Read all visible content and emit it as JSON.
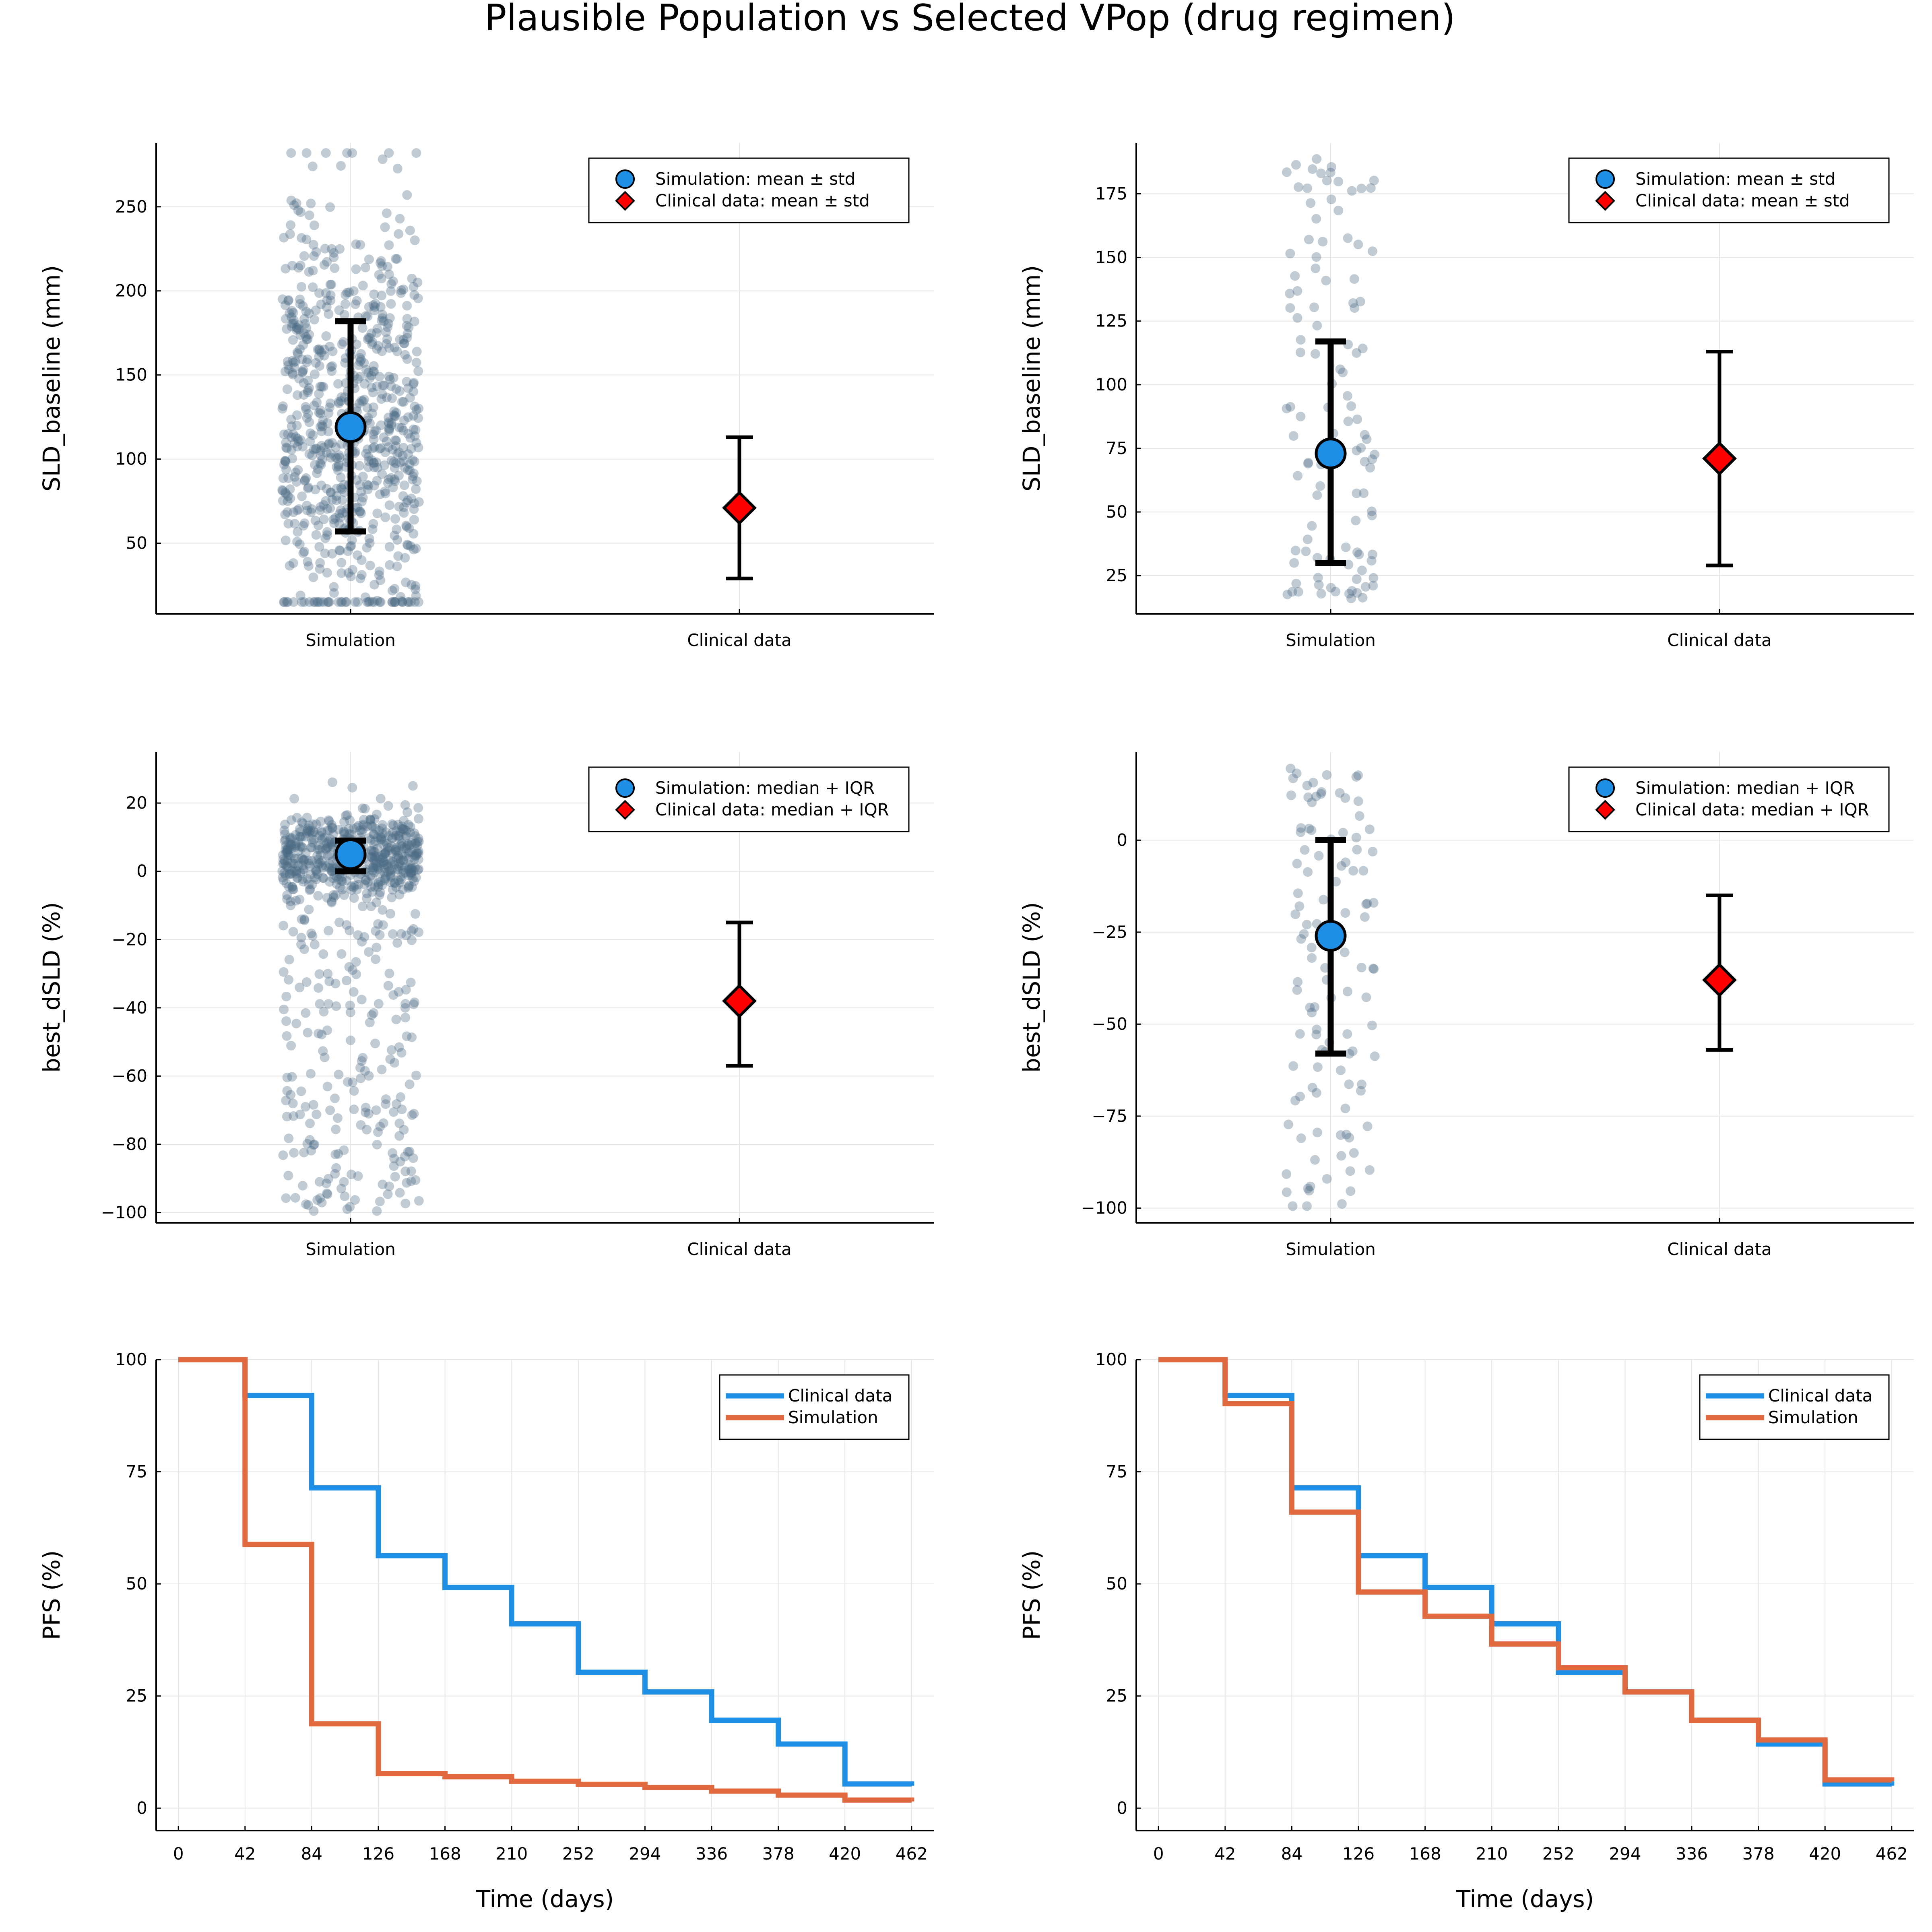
{
  "title": "Plausible Population vs Selected VPop (drug regimen)",
  "colors": {
    "blue": "#1f8fe6",
    "red": "#ff0000",
    "orange": "#e0693f",
    "scatter": "#4a6a85",
    "black": "#000000"
  },
  "chart_data": [
    {
      "type": "scatter",
      "panel": "top-left",
      "pop_size": "plausible",
      "ylabel": "SLD_baseline (mm)",
      "categories": [
        "Simulation",
        "Clinical data"
      ],
      "ylim": [
        8,
        288
      ],
      "yticks": [
        50,
        100,
        150,
        200,
        250
      ],
      "legend": [
        "Simulation: mean ± std",
        "Clinical data: mean ± std"
      ],
      "simulation": {
        "center": 119,
        "low": 57,
        "high": 182
      },
      "clinical": {
        "center": 71,
        "low": 29,
        "high": 113
      },
      "points": {
        "count": 750,
        "min": 15,
        "max": 282,
        "center": 119,
        "spread": 62,
        "dist": "bell_wide"
      }
    },
    {
      "type": "scatter",
      "panel": "top-right",
      "pop_size": "selected",
      "ylabel": "SLD_baseline (mm)",
      "categories": [
        "Simulation",
        "Clinical data"
      ],
      "ylim": [
        10,
        195
      ],
      "yticks": [
        25,
        50,
        75,
        100,
        125,
        150,
        175
      ],
      "legend": [
        "Simulation: mean ± std",
        "Clinical data: mean ± std"
      ],
      "simulation": {
        "center": 73,
        "low": 30,
        "high": 117
      },
      "clinical": {
        "center": 71,
        "low": 29,
        "high": 113
      },
      "points": {
        "count": 110,
        "min": 16,
        "max": 190,
        "center": 60,
        "spread": 35,
        "dist": "skew"
      }
    },
    {
      "type": "scatter",
      "panel": "middle-left",
      "pop_size": "plausible",
      "ylabel": "best_dSLD (%)",
      "categories": [
        "Simulation",
        "Clinical data"
      ],
      "ylim": [
        -103,
        35
      ],
      "yticks": [
        -100,
        -80,
        -60,
        -40,
        -20,
        0,
        20
      ],
      "legend": [
        "Simulation: median + IQR",
        "Clinical data: median + IQR"
      ],
      "simulation": {
        "center": 5,
        "low": 0,
        "high": 9
      },
      "clinical": {
        "center": -38,
        "low": -57,
        "high": -15
      },
      "points": {
        "count": 750,
        "min": -100,
        "max": 31,
        "center": 5,
        "spread": 6,
        "dist": "bimodal"
      }
    },
    {
      "type": "scatter",
      "panel": "middle-right",
      "pop_size": "selected",
      "ylabel": "best_dSLD (%)",
      "categories": [
        "Simulation",
        "Clinical data"
      ],
      "ylim": [
        -104,
        24
      ],
      "yticks": [
        -100,
        -75,
        -50,
        -25,
        0
      ],
      "legend": [
        "Simulation: median + IQR",
        "Clinical data: median + IQR"
      ],
      "simulation": {
        "center": -26,
        "low": -58,
        "high": 0
      },
      "clinical": {
        "center": -38,
        "low": -57,
        "high": -15
      },
      "points": {
        "count": 110,
        "min": -100,
        "max": 20,
        "center": -30,
        "spread": 35,
        "dist": "uniformish"
      }
    },
    {
      "type": "line",
      "panel": "bottom-left",
      "xlabel": "Time (days)",
      "ylabel": "PFS (%)",
      "xlim": [
        -14,
        476
      ],
      "ylim": [
        -5,
        100
      ],
      "xticks": [
        0,
        42,
        84,
        126,
        168,
        210,
        252,
        294,
        336,
        378,
        420,
        462
      ],
      "yticks": [
        0,
        25,
        50,
        75,
        100
      ],
      "legend": [
        "Clinical data",
        "Simulation"
      ],
      "series": [
        {
          "name": "Clinical data",
          "x": [
            0,
            42,
            84,
            126,
            168,
            210,
            252,
            294,
            336,
            378,
            420,
            462
          ],
          "values": [
            100,
            92,
            71.4,
            56.3,
            49.2,
            41.1,
            30.3,
            25.9,
            19.6,
            14.3,
            5.4,
            5
          ]
        },
        {
          "name": "Simulation",
          "x": [
            0,
            42,
            84,
            126,
            168,
            210,
            252,
            294,
            336,
            378,
            420,
            462
          ],
          "values": [
            100,
            58.8,
            18.8,
            7.7,
            7,
            6,
            5.3,
            4.6,
            3.8,
            2.9,
            1.8,
            1.5
          ]
        }
      ]
    },
    {
      "type": "line",
      "panel": "bottom-right",
      "xlabel": "Time (days)",
      "ylabel": "PFS (%)",
      "xlim": [
        -14,
        476
      ],
      "ylim": [
        -5,
        100
      ],
      "xticks": [
        0,
        42,
        84,
        126,
        168,
        210,
        252,
        294,
        336,
        378,
        420,
        462
      ],
      "yticks": [
        0,
        25,
        50,
        75,
        100
      ],
      "legend": [
        "Clinical data",
        "Simulation"
      ],
      "series": [
        {
          "name": "Clinical data",
          "x": [
            0,
            42,
            84,
            126,
            168,
            210,
            252,
            294,
            336,
            378,
            420,
            462
          ],
          "values": [
            100,
            92,
            71.4,
            56.3,
            49.2,
            41.1,
            30.3,
            25.9,
            19.6,
            14.3,
            5.4,
            5
          ]
        },
        {
          "name": "Simulation",
          "x": [
            0,
            42,
            84,
            126,
            168,
            210,
            252,
            294,
            336,
            378,
            420,
            462
          ],
          "values": [
            100,
            90.2,
            66,
            48.2,
            42.8,
            36.6,
            31.3,
            25.9,
            19.6,
            15.2,
            6.3,
            6
          ]
        }
      ]
    }
  ]
}
